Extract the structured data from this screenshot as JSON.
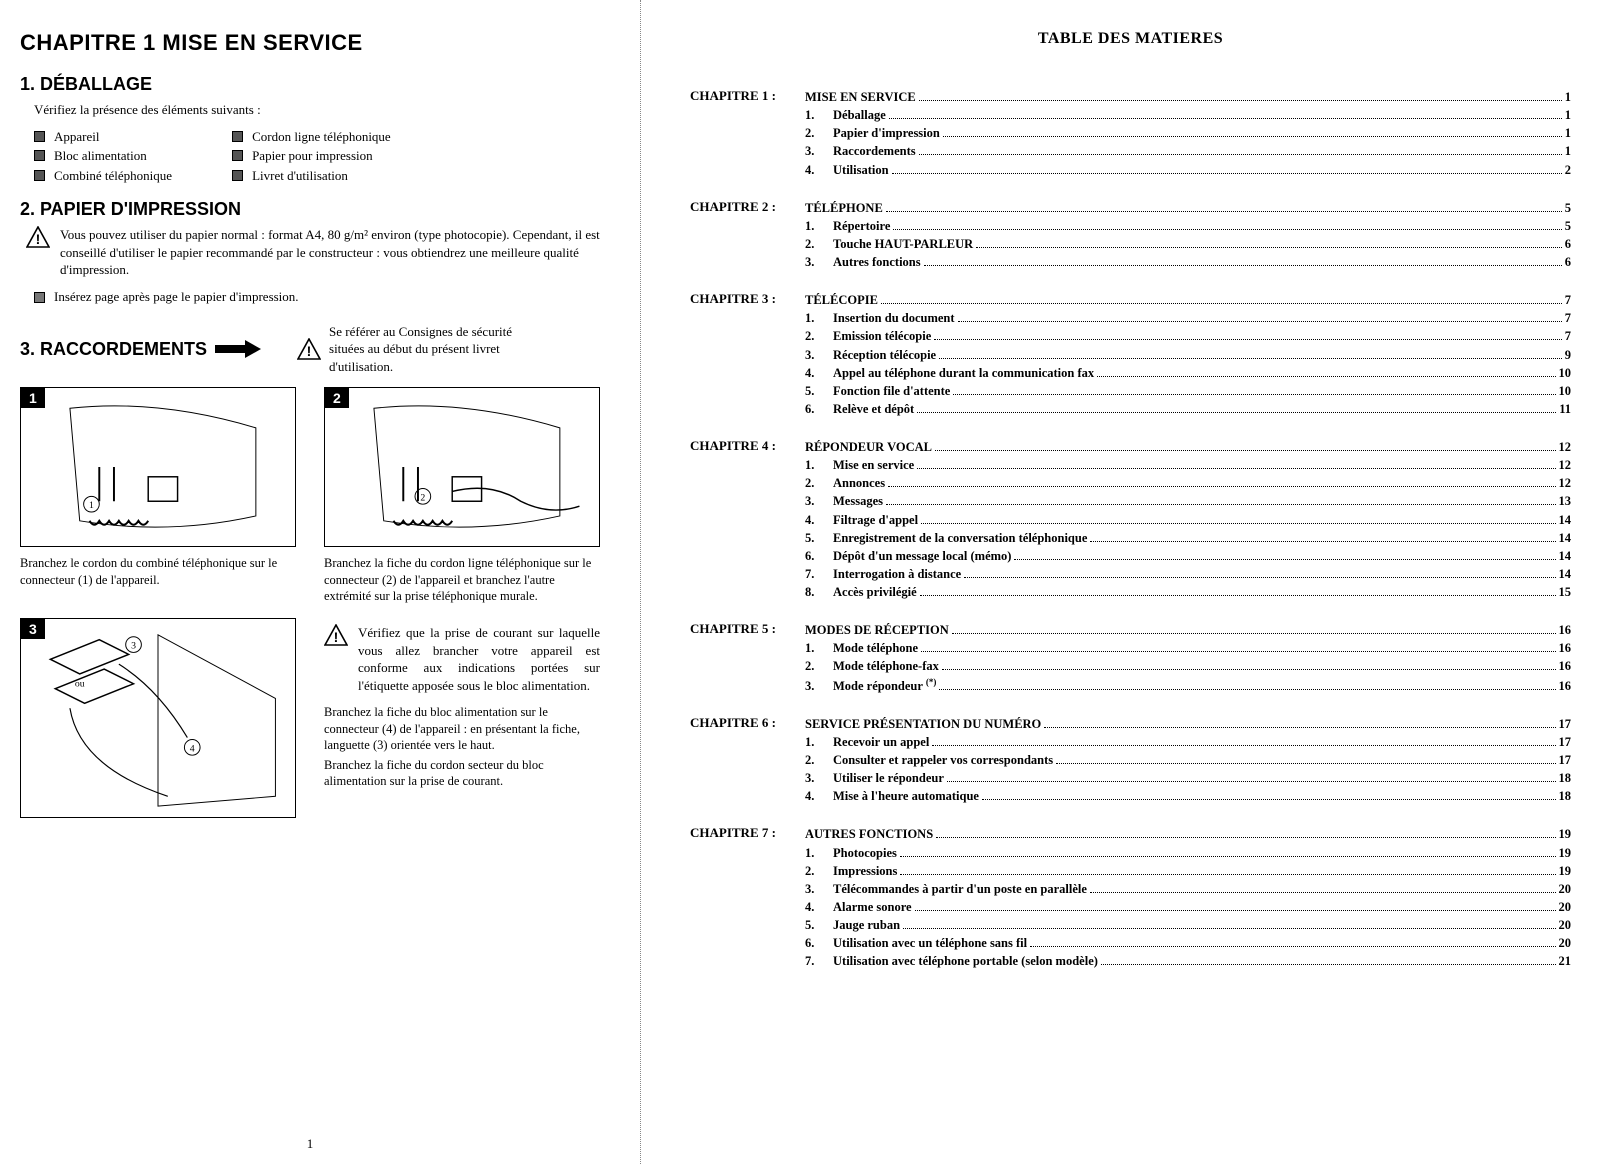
{
  "colors": {
    "text": "#000000",
    "background": "#ffffff",
    "fig_border": "#000000",
    "checkbox_fill": "#555555",
    "divider": "#888888"
  },
  "typography": {
    "heading_family": "Arial, Helvetica, sans-serif",
    "body_family": "Times New Roman, Times, serif",
    "chapter_title_size_pt": 17,
    "section_title_size_pt": 14,
    "body_size_pt": 10,
    "toc_size_pt": 9.5
  },
  "left": {
    "chapter_title": "CHAPITRE 1   MISE EN SERVICE",
    "sections": {
      "s1": {
        "title": "1. DÉBALLAGE",
        "intro": "Vérifiez la présence des éléments suivants :",
        "items_col1": [
          "Appareil",
          "Bloc alimentation",
          "Combiné téléphonique"
        ],
        "items_col2": [
          "Cordon ligne téléphonique",
          "Papier pour impression",
          "Livret d'utilisation"
        ]
      },
      "s2": {
        "title": "2. PAPIER D'IMPRESSION",
        "warn": "Vous pouvez utiliser du papier normal : format A4, 80 g/m² environ (type photocopie). Cependant, il est conseillé d'utiliser le papier recommandé par le constructeur : vous obtiendrez une meilleure qualité d'impression.",
        "bullet": "Insérez page après page le papier d'impression."
      },
      "s3": {
        "title": "3. RACCORDEMENTS",
        "warn": "Se référer au Consignes de sécurité situées au début du présent livret d'utilisation.",
        "fig1_num": "1",
        "fig2_num": "2",
        "fig3_num": "3",
        "cap1": "Branchez le cordon du combiné téléphonique sur le connecteur (1) de l'appareil.",
        "cap2": "Branchez la fiche du cordon ligne téléphonique sur le connecteur (2) de l'appareil et branchez l'autre extrémité sur la prise téléphonique murale.",
        "warn2": "Vérifiez que la prise de courant sur laquelle vous allez brancher votre appareil est conforme aux indications portées sur l'étiquette apposée sous le bloc alimentation.",
        "cap3a": "Branchez la fiche du bloc alimentation sur le connecteur (4) de l'appareil : en présentant la fiche, languette (3) orientée vers le haut.",
        "cap3b": "Branchez la fiche du cordon secteur du bloc alimentation sur la prise de courant."
      }
    },
    "page_number": "1"
  },
  "right": {
    "title": "TABLE DES MATIERES",
    "chapters": [
      {
        "label": "CHAPITRE 1 :",
        "head": {
          "text": "MISE EN SERVICE",
          "page": "1"
        },
        "items": [
          {
            "n": "1.",
            "text": "Déballage",
            "page": "1"
          },
          {
            "n": "2.",
            "text": "Papier d'impression",
            "page": "1"
          },
          {
            "n": "3.",
            "text": "Raccordements",
            "page": "1"
          },
          {
            "n": "4.",
            "text": "Utilisation",
            "page": "2"
          }
        ]
      },
      {
        "label": "CHAPITRE 2 :",
        "head": {
          "text": "TÉLÉPHONE",
          "page": "5"
        },
        "items": [
          {
            "n": "1.",
            "text": "Répertoire",
            "page": "5"
          },
          {
            "n": "2.",
            "text": "Touche HAUT-PARLEUR",
            "page": "6"
          },
          {
            "n": "3.",
            "text": "Autres fonctions",
            "page": "6"
          }
        ]
      },
      {
        "label": "CHAPITRE 3 :",
        "head": {
          "text": "TÉLÉCOPIE",
          "page": "7"
        },
        "items": [
          {
            "n": "1.",
            "text": "Insertion du document",
            "page": "7"
          },
          {
            "n": "2.",
            "text": "Emission télécopie",
            "page": "7"
          },
          {
            "n": "3.",
            "text": "Réception télécopie",
            "page": "9"
          },
          {
            "n": "4.",
            "text": "Appel au téléphone durant la communication fax",
            "page": "10"
          },
          {
            "n": "5.",
            "text": "Fonction file d'attente",
            "page": "10"
          },
          {
            "n": "6.",
            "text": "Relève et dépôt",
            "page": "11"
          }
        ]
      },
      {
        "label": "CHAPITRE 4 :",
        "head": {
          "text": "RÉPONDEUR VOCAL",
          "page": "12"
        },
        "items": [
          {
            "n": "1.",
            "text": "Mise en service",
            "page": "12"
          },
          {
            "n": "2.",
            "text": "Annonces",
            "page": "12"
          },
          {
            "n": "3.",
            "text": "Messages",
            "page": "13"
          },
          {
            "n": "4.",
            "text": "Filtrage d'appel",
            "page": "14"
          },
          {
            "n": "5.",
            "text": "Enregistrement de la conversation téléphonique",
            "page": "14"
          },
          {
            "n": "6.",
            "text": "Dépôt d'un message local (mémo)",
            "page": "14"
          },
          {
            "n": "7.",
            "text": "Interrogation à distance",
            "page": "14"
          },
          {
            "n": "8.",
            "text": "Accès privilégié",
            "page": "15"
          }
        ]
      },
      {
        "label": "CHAPITRE 5 :",
        "head": {
          "text": "MODES DE RÉCEPTION",
          "page": "16"
        },
        "items": [
          {
            "n": "1.",
            "text": "Mode téléphone",
            "page": "16"
          },
          {
            "n": "2.",
            "text": "Mode téléphone-fax",
            "page": "16"
          },
          {
            "n": "3.",
            "text": "Mode répondeur (*)",
            "page": "16"
          }
        ]
      },
      {
        "label": "CHAPITRE 6 :",
        "head": {
          "text": "SERVICE PRÉSENTATION DU NUMÉRO",
          "page": "17"
        },
        "items": [
          {
            "n": "1.",
            "text": "Recevoir un appel",
            "page": "17"
          },
          {
            "n": "2.",
            "text": "Consulter et rappeler vos correspondants",
            "page": "17"
          },
          {
            "n": "3.",
            "text": "Utiliser le répondeur",
            "page": "18"
          },
          {
            "n": "4.",
            "text": "Mise à l'heure automatique",
            "page": "18"
          }
        ]
      },
      {
        "label": "CHAPITRE 7 :",
        "head": {
          "text": "AUTRES FONCTIONS",
          "page": "19"
        },
        "items": [
          {
            "n": "1.",
            "text": "Photocopies",
            "page": "19"
          },
          {
            "n": "2.",
            "text": "Impressions",
            "page": "19"
          },
          {
            "n": "3.",
            "text": "Télécommandes à partir d'un poste en parallèle",
            "page": "20"
          },
          {
            "n": "4.",
            "text": "Alarme sonore",
            "page": "20"
          },
          {
            "n": "5.",
            "text": "Jauge ruban",
            "page": "20"
          },
          {
            "n": "6.",
            "text": "Utilisation avec un téléphone sans fil",
            "page": "20"
          },
          {
            "n": "7.",
            "text": "Utilisation avec téléphone portable (selon modèle)",
            "page": "21"
          }
        ]
      }
    ]
  }
}
